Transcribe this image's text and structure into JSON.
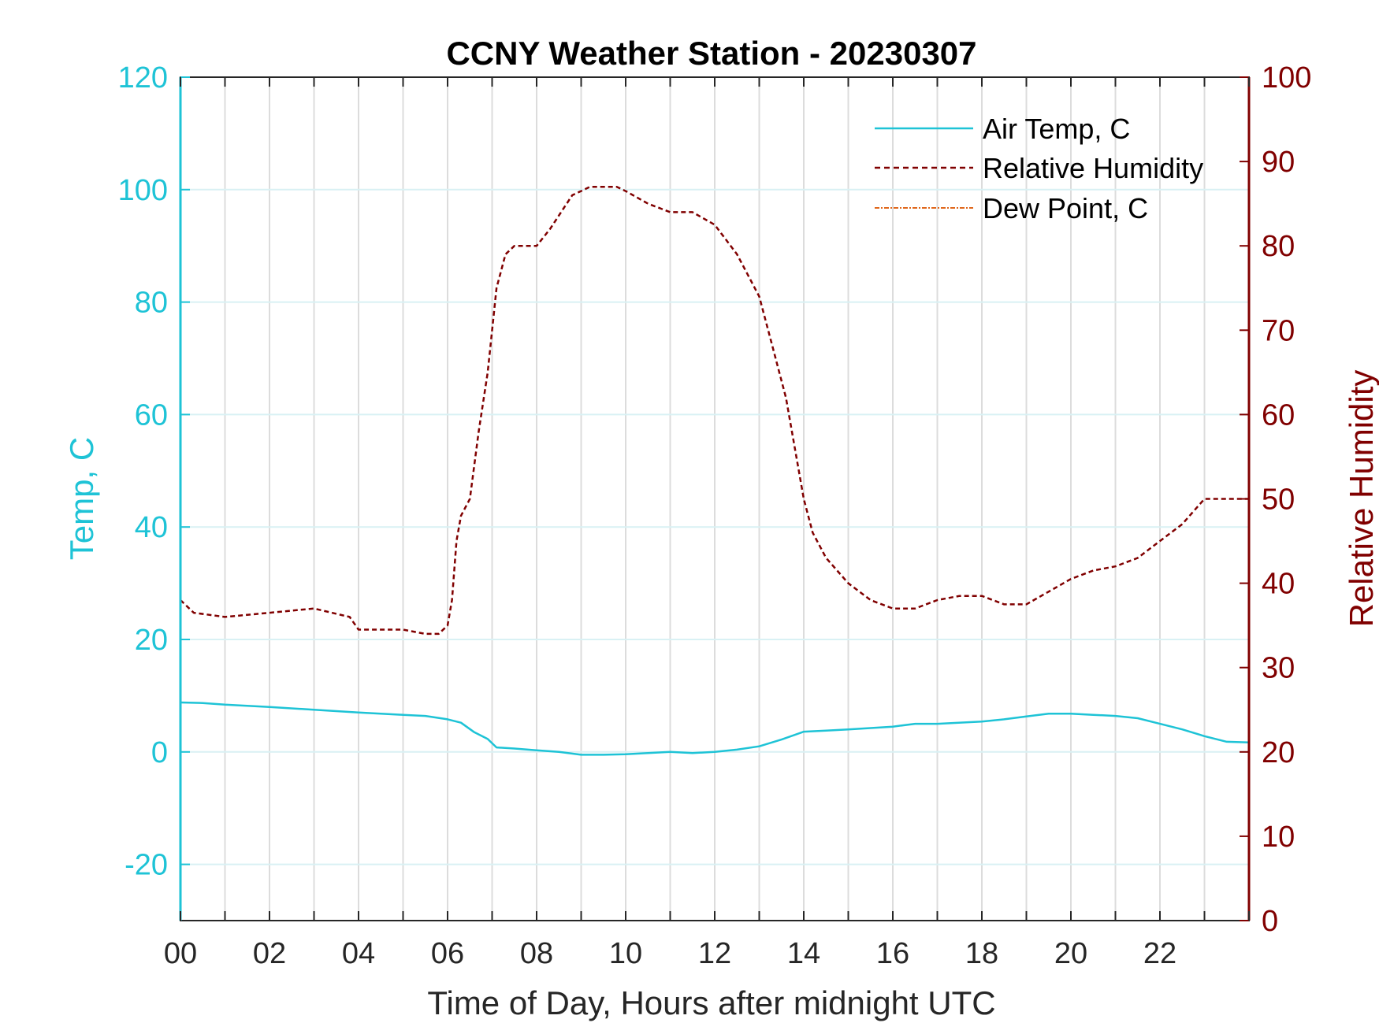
{
  "chart_data": {
    "type": "line",
    "title": "CCNY Weather Station - 20230307",
    "xlabel": "Time of Day, Hours after midnight UTC",
    "ylabel_left": "Temp, C",
    "ylabel_right": "Relative Humidity",
    "xlim": [
      0,
      24
    ],
    "ylim_left": [
      -30,
      120
    ],
    "ylim_right": [
      0,
      100
    ],
    "x_ticks": [
      0,
      2,
      4,
      6,
      8,
      10,
      12,
      14,
      16,
      18,
      20,
      22
    ],
    "x_tick_labels": [
      "00",
      "02",
      "04",
      "06",
      "08",
      "10",
      "12",
      "14",
      "16",
      "18",
      "20",
      "22"
    ],
    "y_left_ticks": [
      -20,
      0,
      20,
      40,
      60,
      80,
      100,
      120
    ],
    "y_left_tick_labels": [
      "-20",
      "0",
      "20",
      "40",
      "60",
      "80",
      "100",
      "120"
    ],
    "y_right_ticks": [
      0,
      10,
      20,
      30,
      40,
      50,
      60,
      70,
      80,
      90,
      100
    ],
    "y_right_tick_labels": [
      "0",
      "10",
      "20",
      "30",
      "40",
      "50",
      "60",
      "70",
      "80",
      "90",
      "100"
    ],
    "grid": "on",
    "legend_position": "top-right",
    "colors": {
      "temp": "#1ec3d6",
      "rh": "#800000",
      "dew": "#e0661a",
      "grid": "#dcdcdc",
      "axis": "#262626"
    },
    "series": [
      {
        "name": "Air Temp, C",
        "axis": "left",
        "style": "solid",
        "x": [
          0,
          0.5,
          1,
          2,
          3,
          4,
          5,
          5.5,
          6,
          6.3,
          6.6,
          6.9,
          7.1,
          7.5,
          8,
          8.5,
          9,
          9.5,
          10,
          10.5,
          11,
          11.5,
          12,
          12.5,
          13,
          13.5,
          14,
          14.5,
          15,
          16,
          16.5,
          17,
          18,
          18.5,
          19,
          19.5,
          20,
          20.5,
          21,
          21.5,
          22,
          22.5,
          23,
          23.5,
          24
        ],
        "values": [
          8.8,
          8.7,
          8.4,
          8.0,
          7.5,
          7.0,
          6.6,
          6.4,
          5.8,
          5.2,
          3.5,
          2.3,
          0.8,
          0.6,
          0.3,
          0.0,
          -0.5,
          -0.5,
          -0.4,
          -0.2,
          0.0,
          -0.2,
          0.0,
          0.4,
          1.0,
          2.2,
          3.6,
          3.8,
          4.0,
          4.5,
          5.0,
          5.0,
          5.4,
          5.8,
          6.3,
          6.8,
          6.8,
          6.6,
          6.4,
          6.0,
          5.0,
          4.0,
          2.8,
          1.8,
          1.7
        ]
      },
      {
        "name": "Relative Humidity",
        "axis": "right",
        "style": "dashed",
        "x": [
          0,
          0.3,
          1,
          2,
          3,
          3.8,
          4.0,
          4.5,
          5,
          5.5,
          5.8,
          6.0,
          6.1,
          6.2,
          6.3,
          6.5,
          6.7,
          6.9,
          7.1,
          7.3,
          7.5,
          8,
          8.3,
          8.8,
          9.2,
          9.8,
          10.0,
          10.5,
          11,
          11.5,
          12,
          12.5,
          13,
          13.3,
          13.6,
          13.8,
          14.0,
          14.2,
          14.5,
          15,
          15.5,
          16,
          16.5,
          17,
          17.5,
          18,
          18.5,
          19,
          19.5,
          20,
          20.5,
          21,
          21.5,
          22,
          22.5,
          23,
          23.5,
          24
        ],
        "values": [
          38,
          36.5,
          36,
          36.5,
          37,
          36,
          34.5,
          34.5,
          34.5,
          34,
          34,
          35,
          38,
          45,
          48,
          50,
          58,
          65,
          75,
          79,
          80,
          80,
          82,
          86,
          87,
          87,
          86.5,
          85,
          84,
          84,
          82.5,
          79,
          74,
          68,
          62,
          56,
          50,
          46,
          43,
          40,
          38,
          37,
          37,
          38,
          38.5,
          38.5,
          37.5,
          37.5,
          39,
          40.5,
          41.5,
          42,
          43,
          45,
          47,
          50,
          50,
          50
        ]
      },
      {
        "name": "Dew Point, C",
        "axis": "left",
        "style": "dash-dot",
        "x": [],
        "values": []
      }
    ]
  }
}
